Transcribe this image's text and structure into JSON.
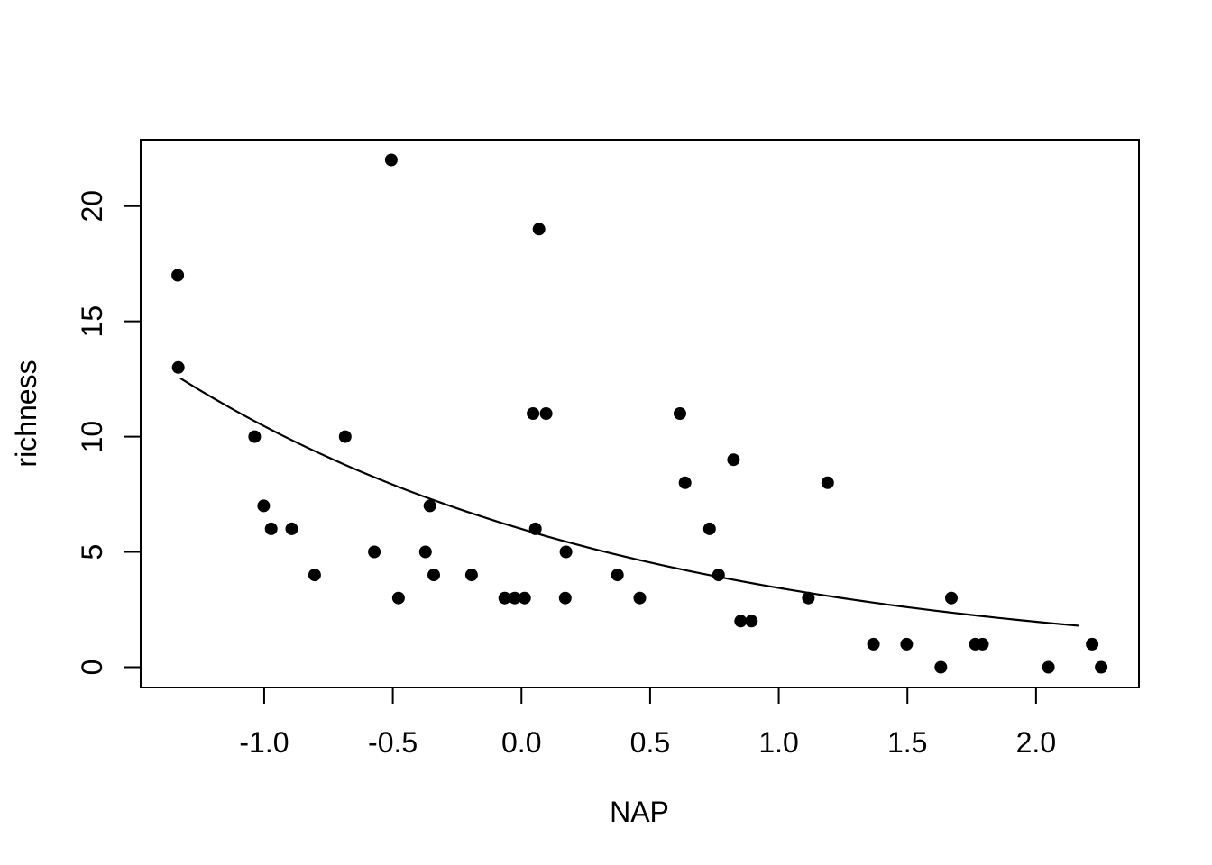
{
  "figure": {
    "background": "#ffffff",
    "foreground": "#000000",
    "point_color": "#000000",
    "line_color": "#000000"
  },
  "chart_data": {
    "type": "scatter",
    "title": "",
    "xlabel": "NAP",
    "ylabel": "richness",
    "xlim": [
      -1.48,
      2.4
    ],
    "ylim": [
      -0.88,
      22.88
    ],
    "grid": false,
    "legend": "none",
    "marker": "filled-circle",
    "x_ticks": [
      -1.0,
      -0.5,
      0.0,
      0.5,
      1.0,
      1.5,
      2.0
    ],
    "x_tick_labels": [
      "-1.0",
      "-0.5",
      "0.0",
      "0.5",
      "1.0",
      "1.5",
      "2.0"
    ],
    "y_ticks": [
      0,
      5,
      10,
      15,
      20
    ],
    "y_tick_labels": [
      "0",
      "5",
      "10",
      "15",
      "20"
    ],
    "points": [
      [
        -1.336,
        17
      ],
      [
        -1.334,
        13
      ],
      [
        -1.037,
        10
      ],
      [
        -1.002,
        7
      ],
      [
        -0.973,
        6
      ],
      [
        -0.893,
        6
      ],
      [
        -0.804,
        4
      ],
      [
        -0.685,
        10
      ],
      [
        -0.572,
        5
      ],
      [
        -0.506,
        22
      ],
      [
        -0.478,
        3
      ],
      [
        -0.373,
        5
      ],
      [
        -0.356,
        7
      ],
      [
        -0.341,
        4
      ],
      [
        -0.194,
        4
      ],
      [
        -0.065,
        3
      ],
      [
        -0.026,
        3
      ],
      [
        0.012,
        3
      ],
      [
        0.045,
        11
      ],
      [
        0.054,
        6
      ],
      [
        0.068,
        19
      ],
      [
        0.096,
        11
      ],
      [
        0.17,
        3
      ],
      [
        0.173,
        5
      ],
      [
        0.373,
        4
      ],
      [
        0.46,
        3
      ],
      [
        0.616,
        11
      ],
      [
        0.636,
        8
      ],
      [
        0.731,
        6
      ],
      [
        0.766,
        4
      ],
      [
        0.824,
        9
      ],
      [
        0.852,
        2
      ],
      [
        0.894,
        2
      ],
      [
        1.115,
        3
      ],
      [
        1.19,
        8
      ],
      [
        1.368,
        1
      ],
      [
        1.497,
        1
      ],
      [
        1.63,
        0
      ],
      [
        1.671,
        3
      ],
      [
        1.764,
        1
      ],
      [
        1.792,
        1
      ],
      [
        2.048,
        0
      ],
      [
        2.218,
        1
      ],
      [
        2.253,
        0
      ]
    ],
    "fit_line": {
      "model": "richness = exp(a + b * NAP)  (Poisson GLM fit)",
      "a": 1.791,
      "b": -0.556,
      "x_start": -1.326,
      "x_end": 2.165
    }
  }
}
